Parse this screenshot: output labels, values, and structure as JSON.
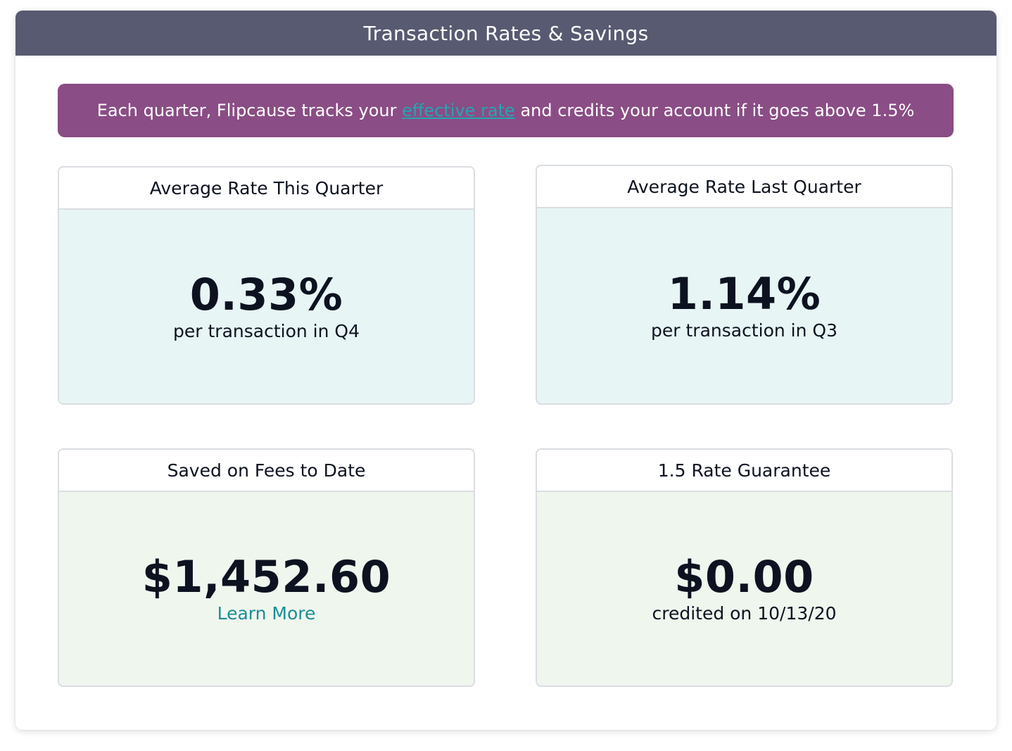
{
  "panel": {
    "title": "Transaction Rates & Savings"
  },
  "banner": {
    "text_before": "Each quarter, Flipcause tracks your ",
    "link_text": "effective rate",
    "text_after": " and credits your account if it goes above 1.5%"
  },
  "cards": {
    "this_quarter": {
      "title": "Average Rate This Quarter",
      "value": "0.33%",
      "caption": "per transaction in Q4"
    },
    "last_quarter": {
      "title": "Average Rate Last Quarter",
      "value": "1.14%",
      "caption": "per transaction in Q3"
    },
    "saved_fees": {
      "title": "Saved on Fees to Date",
      "value": "$1,452.60",
      "link_text": "Learn More"
    },
    "rate_guarantee": {
      "title": "1.5 Rate Guarantee",
      "value": "$0.00",
      "caption": "credited on 10/13/20"
    }
  },
  "colors": {
    "header_bg": "#575a70",
    "banner_bg": "#8a4d85",
    "link": "#23a6b3",
    "rate_card_bg": "#e7f5f5",
    "money_card_bg": "#eff6ee"
  }
}
